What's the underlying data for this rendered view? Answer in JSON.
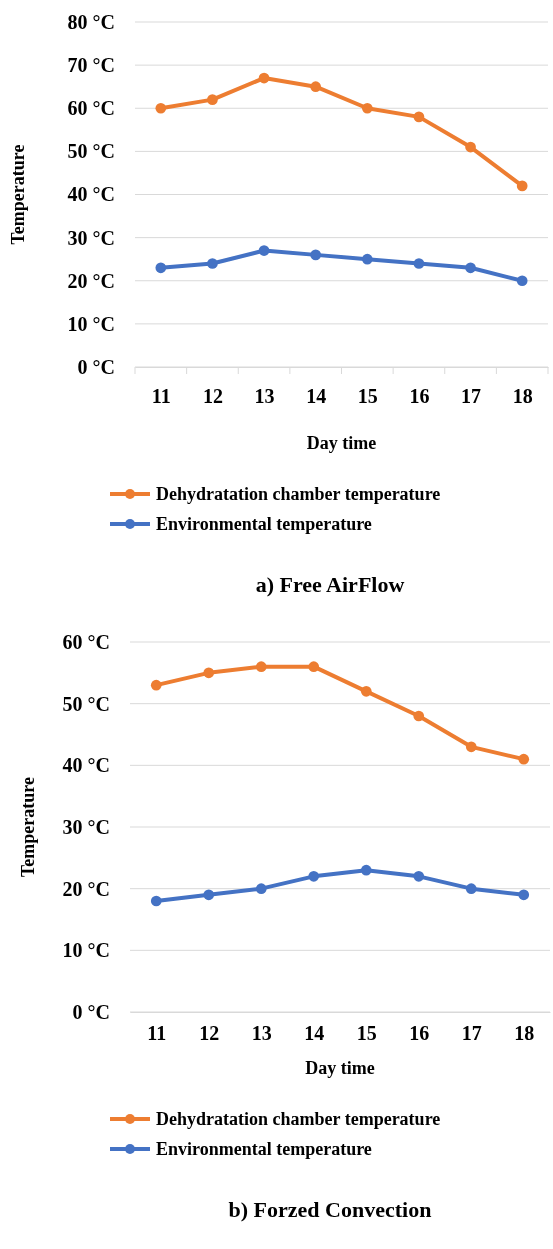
{
  "chart_data": [
    {
      "type": "line",
      "title": "a) Free AirFlow",
      "xlabel": "Day time",
      "ylabel": "Temperature",
      "categories": [
        "11",
        "12",
        "13",
        "14",
        "15",
        "16",
        "17",
        "18"
      ],
      "series": [
        {
          "name": "Dehydratation chamber temperature",
          "color": "#ed7d31",
          "values": [
            60,
            62,
            67,
            65,
            60,
            58,
            51,
            42
          ]
        },
        {
          "name": "Environmental temperature",
          "color": "#4472c4",
          "values": [
            23,
            24,
            27,
            26,
            25,
            24,
            23,
            20
          ]
        }
      ],
      "ylim": [
        0,
        80
      ],
      "yticks": [
        {
          "value": 0,
          "label": "0 °C"
        },
        {
          "value": 10,
          "label": "10 °C"
        },
        {
          "value": 20,
          "label": "20 °C"
        },
        {
          "value": 30,
          "label": "30 °C"
        },
        {
          "value": 40,
          "label": "40 °C"
        },
        {
          "value": 50,
          "label": "50 °C"
        },
        {
          "value": 60,
          "label": "60 °C"
        },
        {
          "value": 70,
          "label": "70 °C"
        },
        {
          "value": 80,
          "label": "80 °C"
        }
      ],
      "grid": "y",
      "legend": "bottom",
      "marker": "circle",
      "line_style": "solid"
    },
    {
      "type": "line",
      "title": "b) Forzed Convection",
      "xlabel": "Day time",
      "ylabel": "Temperature",
      "categories": [
        "11",
        "12",
        "13",
        "14",
        "15",
        "16",
        "17",
        "18"
      ],
      "series": [
        {
          "name": "Dehydratation chamber temperature",
          "color": "#ed7d31",
          "values": [
            53,
            55,
            56,
            56,
            52,
            48,
            43,
            41
          ]
        },
        {
          "name": "Environmental temperature",
          "color": "#4472c4",
          "values": [
            18,
            19,
            20,
            22,
            23,
            22,
            20,
            19
          ]
        }
      ],
      "ylim": [
        0,
        60
      ],
      "yticks": [
        {
          "value": 0,
          "label": "0 °C"
        },
        {
          "value": 10,
          "label": "10 °C"
        },
        {
          "value": 20,
          "label": "20 °C"
        },
        {
          "value": 30,
          "label": "30 °C"
        },
        {
          "value": 40,
          "label": "40 °C"
        },
        {
          "value": 50,
          "label": "50 °C"
        },
        {
          "value": 60,
          "label": "60 °C"
        }
      ],
      "grid": "y",
      "legend": "bottom",
      "marker": "circle",
      "line_style": "solid"
    }
  ]
}
